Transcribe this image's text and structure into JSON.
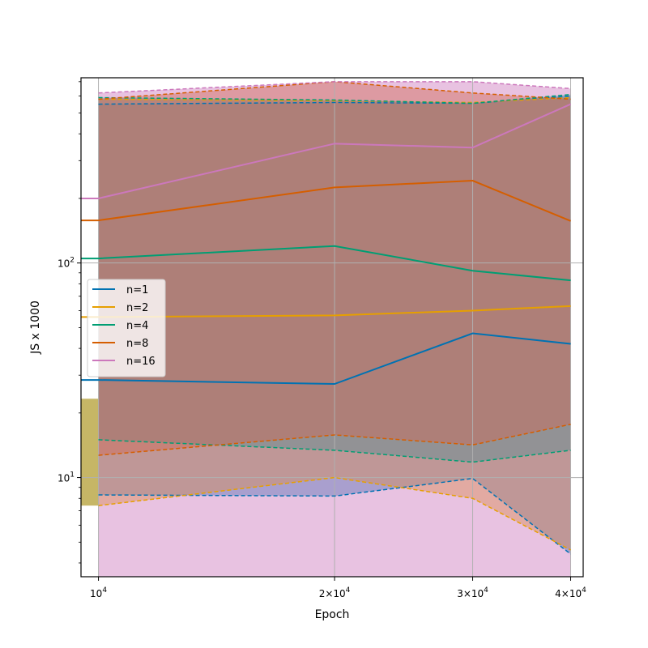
{
  "chart_data": {
    "type": "line",
    "title": "",
    "xlabel": "Epoch",
    "ylabel": "JS x 1000",
    "xscale": "log",
    "yscale": "log",
    "xlim": [
      9500,
      41500
    ],
    "ylim": [
      3.45,
      730
    ],
    "grid": true,
    "legend_position": "center-left",
    "x_ticks": [
      {
        "value": 10000,
        "base": "10",
        "exp": "4"
      },
      {
        "value": 20000,
        "base": "2×10",
        "exp": "4"
      },
      {
        "value": 30000,
        "base": "3×10",
        "exp": "4"
      },
      {
        "value": 40000,
        "base": "4×10",
        "exp": "4"
      }
    ],
    "y_ticks": [
      {
        "value": 10,
        "base": "10",
        "exp": "1"
      },
      {
        "value": 100,
        "base": "10",
        "exp": "2"
      }
    ],
    "x": [
      10000,
      20000,
      30000,
      40000
    ],
    "series": [
      {
        "name": "n=1",
        "color": "#0072b2",
        "values": [
          28.5,
          27.3,
          47.0,
          42.0
        ],
        "lower": [
          8.3,
          8.2,
          9.9,
          4.4
        ],
        "upper": [
          550,
          560,
          555,
          600
        ]
      },
      {
        "name": "n=2",
        "color": "#e69f00",
        "values": [
          56.0,
          57.0,
          60.0,
          63.0
        ],
        "lower": [
          7.4,
          10.0,
          8.0,
          4.6
        ],
        "upper": [
          580,
          570,
          560,
          590
        ]
      },
      {
        "name": "n=4",
        "color": "#009e73",
        "values": [
          105,
          120,
          92,
          83
        ],
        "lower": [
          15.0,
          13.4,
          11.8,
          13.4
        ],
        "upper": [
          590,
          575,
          555,
          610
        ]
      },
      {
        "name": "n=8",
        "color": "#d55e00",
        "values": [
          158,
          225,
          242,
          157
        ],
        "lower": [
          12.7,
          15.8,
          14.2,
          17.7
        ],
        "upper": [
          580,
          700,
          620,
          580
        ]
      },
      {
        "name": "n=16",
        "color": "#cc78bc",
        "values": [
          200,
          360,
          345,
          550
        ],
        "lower": [
          3.0,
          3.0,
          3.0,
          3.0
        ],
        "upper": [
          620,
          700,
          700,
          650
        ]
      }
    ],
    "extra_band": {
      "color": "#a08600",
      "x": [
        9500,
        10000
      ],
      "lower": 7.4,
      "upper": 23.3
    }
  }
}
